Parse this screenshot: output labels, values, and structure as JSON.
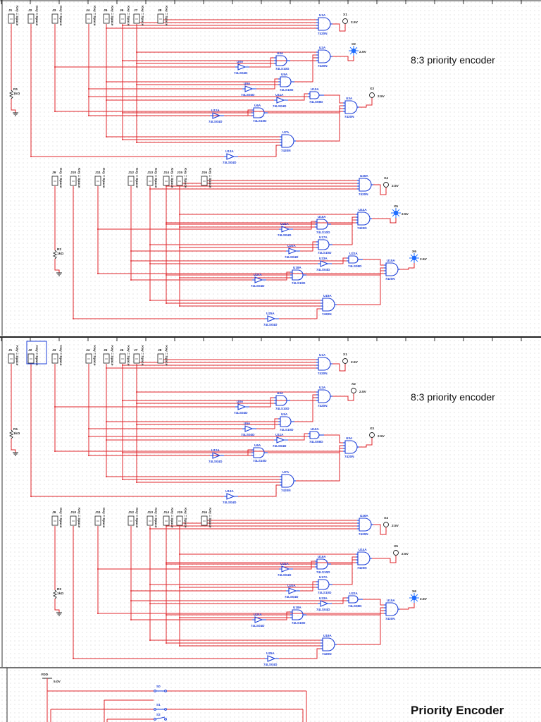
{
  "colors": {
    "wire": "#e0262b",
    "component": "#1d3fd8",
    "probe_lit": "#1e6cff",
    "text": "#111111"
  },
  "schematics": [
    {
      "title": "8:3 priority encoder",
      "blocks": [
        {
          "resistor": {
            "ref": "R1",
            "value": "1kΩ"
          },
          "switches": [
            {
              "ref": "J1",
              "key": "Key = Space"
            },
            {
              "ref": "J2",
              "key": "Key = Space"
            },
            {
              "ref": "J3",
              "key": "Key = Space"
            },
            {
              "ref": "J4",
              "key": "Key = Space"
            },
            {
              "ref": "J5",
              "key": "Key = Space"
            },
            {
              "ref": "J6",
              "key": "Key = Space"
            },
            {
              "ref": "J7",
              "key": "Key = Space"
            },
            {
              "ref": "J8",
              "key": "Key = Space"
            }
          ],
          "gates": [
            {
              "ref": "U1A",
              "part": "7420N"
            },
            {
              "ref": "U2A",
              "part": "7420N"
            },
            {
              "ref": "U3A",
              "part": "7420N"
            },
            {
              "ref": "U4A",
              "part": "74LS10D"
            },
            {
              "ref": "U5A",
              "part": "74LS10D"
            },
            {
              "ref": "U6A",
              "part": "74LS10D"
            },
            {
              "ref": "U7A",
              "part": "7420N"
            },
            {
              "ref": "U10A",
              "part": "74LS08D"
            },
            {
              "ref": "U8A",
              "part": "74LS04D"
            },
            {
              "ref": "U9A",
              "part": "74LS04D"
            },
            {
              "ref": "U11A",
              "part": "74LS04D"
            },
            {
              "ref": "U12A",
              "part": "74LS04D"
            },
            {
              "ref": "U13A",
              "part": "74LS04D"
            }
          ],
          "probes": [
            {
              "ref": "X1",
              "voltage": "2.5V",
              "lit": false
            },
            {
              "ref": "X2",
              "voltage": "2.5V",
              "lit": true
            },
            {
              "ref": "X3",
              "voltage": "2.5V",
              "lit": false
            }
          ]
        },
        {
          "resistor": {
            "ref": "R2",
            "value": "1kΩ"
          },
          "switches": [
            {
              "ref": "J9",
              "key": "Key = Space"
            },
            {
              "ref": "J10",
              "key": "Key = Space"
            },
            {
              "ref": "J11",
              "key": "Key = Space"
            },
            {
              "ref": "J12",
              "key": "Key = Space"
            },
            {
              "ref": "J13",
              "key": "Key = Space"
            },
            {
              "ref": "J14",
              "key": "Key = Space"
            },
            {
              "ref": "J15",
              "key": "Key = Space"
            },
            {
              "ref": "J16",
              "key": "Key = Space"
            }
          ],
          "gates": [
            {
              "ref": "U26A",
              "part": "7420N"
            },
            {
              "ref": "U14A",
              "part": "7420N"
            },
            {
              "ref": "U15A",
              "part": "7420N"
            },
            {
              "ref": "U16A",
              "part": "74LS10D"
            },
            {
              "ref": "U17A",
              "part": "74LS10D"
            },
            {
              "ref": "U18A",
              "part": "74LS10D"
            },
            {
              "ref": "U19A",
              "part": "7420N"
            },
            {
              "ref": "U22A",
              "part": "74LS08D"
            },
            {
              "ref": "U21A",
              "part": "74LS04D"
            },
            {
              "ref": "U20A",
              "part": "74LS04D"
            },
            {
              "ref": "U23A",
              "part": "74LS04D"
            },
            {
              "ref": "U24A",
              "part": "74LS04D"
            },
            {
              "ref": "U25A",
              "part": "74LS04D"
            }
          ],
          "probes": [
            {
              "ref": "X4",
              "voltage": "2.5V",
              "lit": false
            },
            {
              "ref": "X5",
              "voltage": "2.5V",
              "lit": true
            },
            {
              "ref": "X6",
              "voltage": "2.5V",
              "lit": true
            }
          ]
        }
      ]
    },
    {
      "title": "8:3 priority encoder",
      "blocks": [
        {
          "resistor": {
            "ref": "R1",
            "value": "1kΩ"
          },
          "switches": [
            {
              "ref": "J1",
              "key": "Key = Space"
            },
            {
              "ref": "J2",
              "key": "Key = Space"
            },
            {
              "ref": "J3",
              "key": "Key = Space"
            },
            {
              "ref": "J4",
              "key": "Key = Space"
            },
            {
              "ref": "J5",
              "key": "Key = Space"
            },
            {
              "ref": "J6",
              "key": "Key = Space"
            },
            {
              "ref": "J7",
              "key": "Key = Space"
            },
            {
              "ref": "J8",
              "key": "Key = Space"
            }
          ],
          "gates": [
            {
              "ref": "U1A",
              "part": "7420N"
            },
            {
              "ref": "U2A",
              "part": "7420N"
            },
            {
              "ref": "U3A",
              "part": "7420N"
            },
            {
              "ref": "U4A",
              "part": "74LS10D"
            },
            {
              "ref": "U5A",
              "part": "74LS10D"
            },
            {
              "ref": "U6A",
              "part": "74LS10D"
            },
            {
              "ref": "U7A",
              "part": "7420N"
            },
            {
              "ref": "U10A",
              "part": "74LS08D"
            },
            {
              "ref": "U8A",
              "part": "74LS04D"
            },
            {
              "ref": "U9A",
              "part": "74LS04D"
            },
            {
              "ref": "U11A",
              "part": "74LS04D"
            },
            {
              "ref": "U12A",
              "part": "74LS04D"
            },
            {
              "ref": "U13A",
              "part": "74LS04D"
            }
          ],
          "probes": [
            {
              "ref": "X1",
              "voltage": "2.5V",
              "lit": false
            },
            {
              "ref": "X2",
              "voltage": "2.5V",
              "lit": false
            },
            {
              "ref": "X3",
              "voltage": "2.5V",
              "lit": false
            }
          ]
        },
        {
          "resistor": {
            "ref": "R2",
            "value": "1kΩ"
          },
          "switches": [
            {
              "ref": "J9",
              "key": "Key = Space"
            },
            {
              "ref": "J10",
              "key": "Key = Space"
            },
            {
              "ref": "J11",
              "key": "Key = Space"
            },
            {
              "ref": "J12",
              "key": "Key = Space"
            },
            {
              "ref": "J13",
              "key": "Key = Space"
            },
            {
              "ref": "J14",
              "key": "Key = Space"
            },
            {
              "ref": "J15",
              "key": "Key = Space"
            },
            {
              "ref": "J16",
              "key": "Key = Space"
            }
          ],
          "gates": [
            {
              "ref": "U26A",
              "part": "7420N"
            },
            {
              "ref": "U14A",
              "part": "7420N"
            },
            {
              "ref": "U15A",
              "part": "7420N"
            },
            {
              "ref": "U16A",
              "part": "74LS10D"
            },
            {
              "ref": "U17A",
              "part": "74LS10D"
            },
            {
              "ref": "U18A",
              "part": "74LS10D"
            },
            {
              "ref": "U19A",
              "part": "7420N"
            },
            {
              "ref": "U22A",
              "part": "74LS08D"
            },
            {
              "ref": "U21A",
              "part": "74LS04D"
            },
            {
              "ref": "U20A",
              "part": "74LS04D"
            },
            {
              "ref": "U23A",
              "part": "74LS04D"
            },
            {
              "ref": "U24A",
              "part": "74LS04D"
            },
            {
              "ref": "U25A",
              "part": "74LS04D"
            }
          ],
          "probes": [
            {
              "ref": "X4",
              "voltage": "2.5V",
              "lit": false
            },
            {
              "ref": "X5",
              "voltage": "2.5V",
              "lit": false
            },
            {
              "ref": "X6",
              "voltage": "2.5V",
              "lit": true
            }
          ]
        }
      ]
    }
  ],
  "bottom": {
    "title": "Priority Encoder",
    "supply": {
      "ref": "VDD",
      "voltage": "5.0V"
    },
    "switches": [
      {
        "ref": "S0"
      },
      {
        "ref": "S1"
      },
      {
        "ref": "S2"
      }
    ]
  }
}
